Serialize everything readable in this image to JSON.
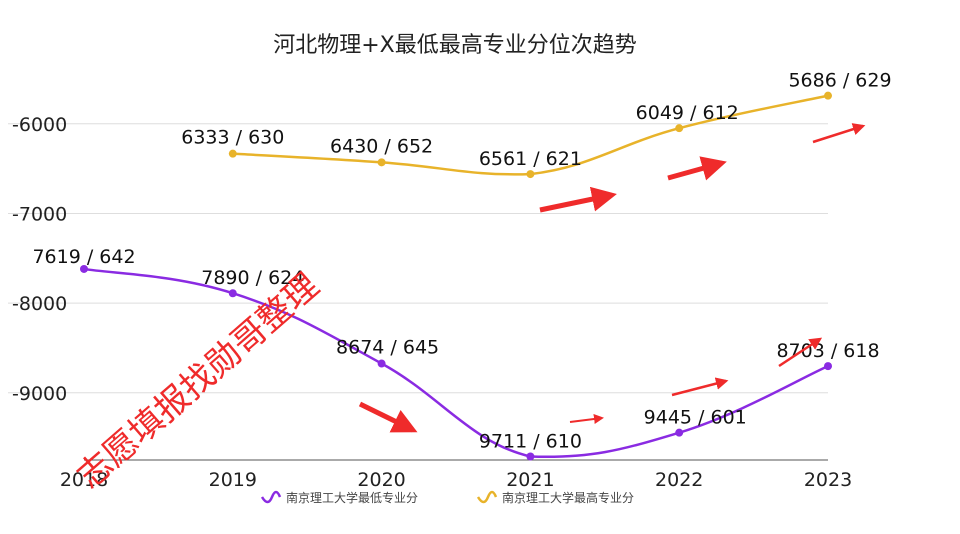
{
  "chart_data": {
    "type": "line",
    "title": "河北物理+X最低最高专业分位次趋势",
    "x": [
      "2018",
      "2019",
      "2020",
      "2021",
      "2022",
      "2023"
    ],
    "ylim": [
      -9750,
      -5400
    ],
    "yticks": [
      "-6000",
      "-7000",
      "-8000",
      "-9000"
    ],
    "grid": true,
    "legend_position": "bottom",
    "series": [
      {
        "name": "南京理工大学最低专业分",
        "color": "#8a2be2",
        "values": [
          -7619,
          -7890,
          -8674,
          -9711,
          -9445,
          -8703
        ],
        "labels": [
          "7619 / 642",
          "7890 / 624",
          "8674 / 645",
          "9711 / 610",
          "9445 / 601",
          "8703 / 618"
        ]
      },
      {
        "name": "南京理工大学最高专业分",
        "color": "#e8b32a",
        "values": [
          null,
          -6333,
          -6430,
          -6561,
          -6049,
          -5686
        ],
        "labels": [
          null,
          "6333 / 630",
          "6430 / 652",
          "6561 / 621",
          "6049 / 612",
          "5686 / 629"
        ]
      }
    ],
    "watermark": "志愿填报找勋哥整理",
    "annotation_color": "#ef2b2b"
  }
}
